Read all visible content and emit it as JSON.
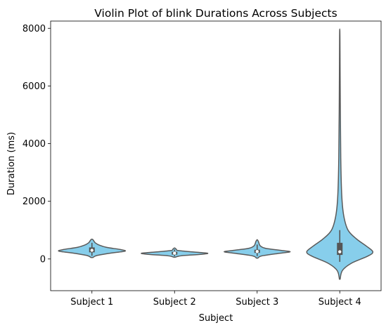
{
  "chart_data": {
    "type": "violin",
    "title": "Violin Plot of blink Durations Across Subjects",
    "xlabel": "Subject",
    "ylabel": "Duration (ms)",
    "ylim": [
      -1100,
      8250
    ],
    "yticks": [
      0,
      2000,
      4000,
      6000,
      8000
    ],
    "categories": [
      "Subject 1",
      "Subject 2",
      "Subject 3",
      "Subject 4"
    ],
    "fill_color": "#87ceeb",
    "edge_color": "#5a5a5a",
    "grid": false,
    "series": [
      {
        "category": "Subject 1",
        "min": 50,
        "max": 680,
        "q1": 230,
        "median": 300,
        "q3": 400,
        "whisker_low": 110,
        "whisker_high": 560,
        "profile": [
          [
            50,
            0.03
          ],
          [
            120,
            0.15
          ],
          [
            200,
            0.55
          ],
          [
            270,
            1.0
          ],
          [
            330,
            0.85
          ],
          [
            400,
            0.45
          ],
          [
            480,
            0.22
          ],
          [
            560,
            0.1
          ],
          [
            620,
            0.06
          ],
          [
            680,
            0.02
          ]
        ]
      },
      {
        "category": "Subject 2",
        "min": 60,
        "max": 380,
        "q1": 150,
        "median": 200,
        "q3": 250,
        "whisker_low": 90,
        "whisker_high": 330,
        "profile": [
          [
            60,
            0.02
          ],
          [
            110,
            0.2
          ],
          [
            160,
            0.8
          ],
          [
            200,
            1.0
          ],
          [
            240,
            0.6
          ],
          [
            290,
            0.12
          ],
          [
            340,
            0.05
          ],
          [
            380,
            0.01
          ]
        ]
      },
      {
        "category": "Subject 3",
        "min": 30,
        "max": 660,
        "q1": 210,
        "median": 260,
        "q3": 320,
        "whisker_low": 100,
        "whisker_high": 500,
        "profile": [
          [
            30,
            0.02
          ],
          [
            110,
            0.15
          ],
          [
            200,
            0.7
          ],
          [
            250,
            1.0
          ],
          [
            300,
            0.7
          ],
          [
            370,
            0.25
          ],
          [
            450,
            0.1
          ],
          [
            530,
            0.06
          ],
          [
            600,
            0.04
          ],
          [
            660,
            0.01
          ]
        ]
      },
      {
        "category": "Subject 4",
        "min": -700,
        "max": 7700,
        "q1": 140,
        "median": 250,
        "q3": 560,
        "whisker_low": -100,
        "whisker_high": 1000,
        "profile": [
          [
            -700,
            0.01
          ],
          [
            -400,
            0.08
          ],
          [
            -150,
            0.35
          ],
          [
            100,
            0.85
          ],
          [
            250,
            1.0
          ],
          [
            450,
            0.8
          ],
          [
            700,
            0.5
          ],
          [
            1000,
            0.25
          ],
          [
            1500,
            0.12
          ],
          [
            2200,
            0.06
          ],
          [
            3500,
            0.03
          ],
          [
            5500,
            0.015
          ],
          [
            7700,
            0.005
          ]
        ]
      }
    ]
  }
}
